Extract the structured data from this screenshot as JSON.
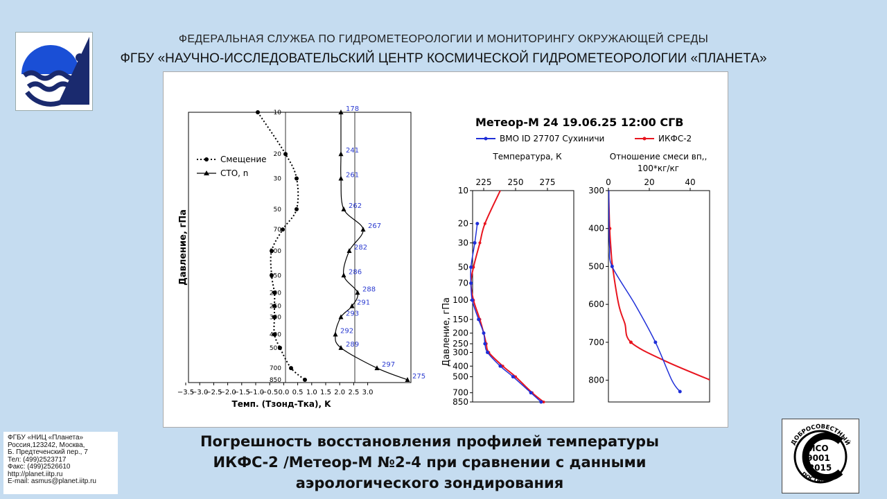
{
  "header": {
    "line1": "ФЕДЕРАЛЬНАЯ СЛУЖБА ПО ГИДРОМЕТЕОРОЛОГИИ И МОНИТОРИНГУ ОКРУЖАЮЩЕЙ СРЕДЫ",
    "line2": "ФГБУ «НАУЧНО-ИССЛЕДОВАТЕЛЬСКИЙ ЦЕНТР КОСМИЧЕСКОЙ ГИДРОМЕТЕОРОЛОГИИ «ПЛАНЕТА»"
  },
  "contact": {
    "lines": [
      "ФГБУ «НИЦ «Планета»",
      "Россия,123242, Москва,",
      "Б. Предтеченский пер., 7",
      "Тел:   (499)2523717",
      "Факс: (499)2526610",
      "http://planet.iitp.ru",
      "E-mail: asmus@planet.iitp.ru"
    ]
  },
  "caption": {
    "line1": "Погрешность восстановления профилей температуры",
    "line2": "ИКФС-2 /Метеор-М №2-4 при сравнении с данными",
    "line3": "аэрологического зондирования"
  },
  "badge": {
    "top_text": "ДОБРОСОВЕСТНЫЙ",
    "bottom_text": "ПОСТАВЩИК",
    "line1": "ИСО",
    "line2": "9001",
    "line3": "-2015"
  },
  "colors": {
    "background": "#c5dcf0",
    "blue_series": "#1f2fd8",
    "red_series": "#e8141e",
    "logo_blue": "#1a4fd6",
    "logo_dark": "#1a2a6e"
  },
  "chart_data": [
    {
      "type": "line",
      "ylabel": "Давление, гПа",
      "xlabel": "Темп. (Тзонд-Тка), K",
      "x_ticks": [
        "−3.5",
        "−3.0",
        "−2.5",
        "−2.0",
        "−1.5",
        "−1.0",
        "−0.5",
        "0.0",
        "0.5",
        "1.0",
        "1.5",
        "2.0",
        "2.5",
        "3.0"
      ],
      "y_ticks": [
        "10",
        "20",
        "30",
        "50",
        "70",
        "100",
        "150",
        "200",
        "250",
        "300",
        "400",
        "500",
        "700",
        "850"
      ],
      "legend": [
        {
          "name": "Смещение",
          "style": "dotted",
          "marker": "circle"
        },
        {
          "name": "СТО, n",
          "style": "solid",
          "marker": "triangle"
        }
      ],
      "bias": {
        "pressure": [
          10,
          20,
          30,
          50,
          70,
          100,
          150,
          200,
          250,
          300,
          400,
          500,
          700,
          850
        ],
        "values": [
          -1.0,
          -0.0,
          0.4,
          0.4,
          -0.1,
          -0.5,
          -0.5,
          -0.4,
          -0.4,
          -0.4,
          -0.4,
          -0.2,
          0.2,
          0.7
        ]
      },
      "std": {
        "pressure": [
          10,
          20,
          30,
          50,
          70,
          100,
          150,
          200,
          250,
          300,
          400,
          500,
          700,
          850
        ],
        "values": [
          2.0,
          2.0,
          2.0,
          2.1,
          2.8,
          2.3,
          2.1,
          2.6,
          2.4,
          2.0,
          1.8,
          2.0,
          3.3,
          4.4
        ],
        "counts": [
          "178",
          "241",
          "261",
          "262",
          "267",
          "282",
          "286",
          "288",
          "291",
          "293",
          "292",
          "289",
          "297",
          "275"
        ]
      },
      "vline_bias": 0.0,
      "vline_std": 2.5
    },
    {
      "type": "line",
      "title": "Метеор-М 24 19.06.25 12:00 СГВ",
      "legend": [
        {
          "name": "ВМО ID 27707 Сухиничи",
          "color": "#1f2fd8"
        },
        {
          "name": "ИКФС-2",
          "color": "#e8141e"
        }
      ],
      "panels": [
        {
          "subtitle": "Температура, К",
          "xlabel": "",
          "ylabel": "Давление, гПа",
          "x_ticks": [
            "225",
            "250",
            "275"
          ],
          "y_ticks": [
            "10",
            "20",
            "30",
            "50",
            "70",
            "100",
            "150",
            "200",
            "250",
            "300",
            "400",
            "500",
            "700",
            "850"
          ],
          "sonde": {
            "pressure": [
              20,
              30,
              50,
              70,
              100,
              150,
              200,
              250,
              300,
              400,
              500,
              700,
              850
            ],
            "values": [
              220,
              218,
              215,
              215,
              216,
              221,
              225,
              226,
              228,
              238,
              248,
              262,
              270
            ]
          },
          "ikfs": {
            "pressure": [
              10,
              20,
              30,
              50,
              70,
              100,
              150,
              200,
              250,
              300,
              400,
              500,
              700,
              850
            ],
            "values": [
              238,
              226,
              222,
              217,
              215,
              217,
              222,
              225,
              227,
              229,
              240,
              250,
              263,
              272
            ]
          }
        },
        {
          "subtitle": "Отношение смеси вп, 100*кг/кг",
          "xlabel": "",
          "x_ticks": [
            "0",
            "20",
            "40"
          ],
          "y_ticks": [
            "300",
            "400",
            "500",
            "600",
            "700",
            "800"
          ],
          "sonde": {
            "pressure": [
              300,
              400,
              450,
              500,
              600,
              700,
              800,
              830
            ],
            "values": [
              0.2,
              0.3,
              0.6,
              1.8,
              13,
              23,
              31,
              35
            ]
          },
          "ikfs": {
            "pressure": [
              300,
              400,
              450,
              500,
              600,
              650,
              700,
              750,
              800
            ],
            "values": [
              0.1,
              0.6,
              1.2,
              2.0,
              5,
              8,
              11,
              28,
              50
            ]
          }
        }
      ]
    }
  ]
}
